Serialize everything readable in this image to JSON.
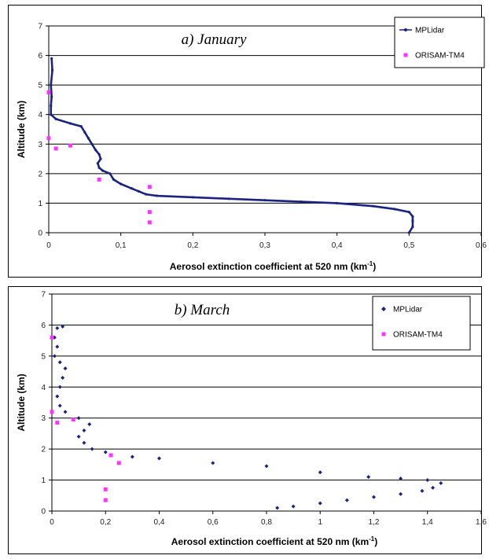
{
  "panels": [
    {
      "title": "a) January",
      "xlabel": "Aerosol extinction coefficient at 520 nm (km",
      "xlabel_sup": "-1",
      "xlabel_end": ")",
      "ylabel": "Altitude (km)",
      "xticks": [
        "0",
        "0,1",
        "0,2",
        "0,3",
        "0,4",
        "0,5",
        "0,6"
      ],
      "yticks": [
        "0",
        "1",
        "2",
        "3",
        "4",
        "5",
        "6",
        "7"
      ],
      "legend": [
        "MPLidar",
        "ORISAM-TM4"
      ]
    },
    {
      "title": "b) March",
      "xlabel": "Aerosol extinction coefficient at 520 nm (km",
      "xlabel_sup": "-1",
      "xlabel_end": ")",
      "ylabel": "Altitude (km)",
      "xticks": [
        "0",
        "0,2",
        "0,4",
        "0,6",
        "0,8",
        "1",
        "1,2",
        "1,4",
        "1,6"
      ],
      "yticks": [
        "0",
        "1",
        "2",
        "3",
        "4",
        "5",
        "6",
        "7"
      ],
      "legend": [
        "MPLidar",
        "ORISAM-TM4"
      ]
    }
  ],
  "chart_data": [
    {
      "type": "scatter",
      "xlim": [
        0,
        0.6
      ],
      "ylim": [
        0,
        7
      ],
      "grid": "horizontal",
      "legend_position": "top-right",
      "colors": {
        "MPLidar": "#1a237e",
        "ORISAM-TM4": "#ff33ff"
      },
      "series": [
        {
          "name": "MPLidar",
          "marker": "line-with-points",
          "points": [
            [
              0.5,
              0.0
            ],
            [
              0.505,
              0.2
            ],
            [
              0.505,
              0.4
            ],
            [
              0.505,
              0.55
            ],
            [
              0.5,
              0.7
            ],
            [
              0.48,
              0.8
            ],
            [
              0.45,
              0.9
            ],
            [
              0.4,
              1.0
            ],
            [
              0.35,
              1.05
            ],
            [
              0.3,
              1.1
            ],
            [
              0.25,
              1.15
            ],
            [
              0.2,
              1.2
            ],
            [
              0.15,
              1.25
            ],
            [
              0.135,
              1.3
            ],
            [
              0.125,
              1.4
            ],
            [
              0.115,
              1.5
            ],
            [
              0.1,
              1.65
            ],
            [
              0.09,
              1.8
            ],
            [
              0.085,
              2.0
            ],
            [
              0.075,
              2.1
            ],
            [
              0.07,
              2.2
            ],
            [
              0.068,
              2.35
            ],
            [
              0.072,
              2.5
            ],
            [
              0.07,
              2.65
            ],
            [
              0.065,
              2.8
            ],
            [
              0.06,
              3.0
            ],
            [
              0.055,
              3.2
            ],
            [
              0.05,
              3.4
            ],
            [
              0.045,
              3.6
            ],
            [
              0.03,
              3.7
            ],
            [
              0.01,
              3.85
            ],
            [
              0.003,
              4.0
            ],
            [
              0.003,
              4.3
            ],
            [
              0.004,
              4.6
            ],
            [
              0.003,
              5.0
            ],
            [
              0.005,
              5.5
            ],
            [
              0.004,
              5.9
            ]
          ]
        },
        {
          "name": "ORISAM-TM4",
          "marker": "square",
          "points": [
            [
              0.14,
              0.35
            ],
            [
              0.14,
              0.7
            ],
            [
              0.14,
              1.55
            ],
            [
              0.07,
              1.8
            ],
            [
              0.01,
              2.85
            ],
            [
              0.03,
              2.95
            ],
            [
              0.0,
              3.2
            ],
            [
              0.0,
              4.75
            ]
          ]
        }
      ]
    },
    {
      "type": "scatter",
      "xlim": [
        0,
        1.6
      ],
      "ylim": [
        0,
        7
      ],
      "grid": "horizontal",
      "legend_position": "top-right",
      "colors": {
        "MPLidar": "#1a237e",
        "ORISAM-TM4": "#ff33ff"
      },
      "series": [
        {
          "name": "MPLidar",
          "marker": "diamond",
          "points": [
            [
              0.84,
              0.1
            ],
            [
              0.9,
              0.15
            ],
            [
              1.0,
              0.25
            ],
            [
              1.1,
              0.35
            ],
            [
              1.2,
              0.45
            ],
            [
              1.3,
              0.55
            ],
            [
              1.38,
              0.65
            ],
            [
              1.42,
              0.75
            ],
            [
              1.45,
              0.9
            ],
            [
              1.4,
              1.0
            ],
            [
              1.3,
              1.05
            ],
            [
              1.18,
              1.1
            ],
            [
              1.0,
              1.25
            ],
            [
              0.8,
              1.45
            ],
            [
              0.6,
              1.55
            ],
            [
              0.4,
              1.7
            ],
            [
              0.3,
              1.75
            ],
            [
              0.2,
              1.9
            ],
            [
              0.15,
              2.0
            ],
            [
              0.12,
              2.2
            ],
            [
              0.1,
              2.4
            ],
            [
              0.12,
              2.6
            ],
            [
              0.14,
              2.8
            ],
            [
              0.1,
              3.0
            ],
            [
              0.05,
              3.2
            ],
            [
              0.03,
              3.4
            ],
            [
              0.02,
              3.7
            ],
            [
              0.03,
              4.0
            ],
            [
              0.04,
              4.3
            ],
            [
              0.05,
              4.6
            ],
            [
              0.03,
              4.8
            ],
            [
              0.01,
              5.0
            ],
            [
              0.02,
              5.3
            ],
            [
              0.01,
              5.6
            ],
            [
              0.02,
              5.9
            ],
            [
              0.04,
              5.95
            ]
          ]
        },
        {
          "name": "ORISAM-TM4",
          "marker": "square",
          "points": [
            [
              0.2,
              0.35
            ],
            [
              0.2,
              0.7
            ],
            [
              0.25,
              1.55
            ],
            [
              0.22,
              1.8
            ],
            [
              0.02,
              2.85
            ],
            [
              0.08,
              2.95
            ],
            [
              0.0,
              3.2
            ],
            [
              0.0,
              5.6
            ]
          ]
        }
      ]
    }
  ]
}
